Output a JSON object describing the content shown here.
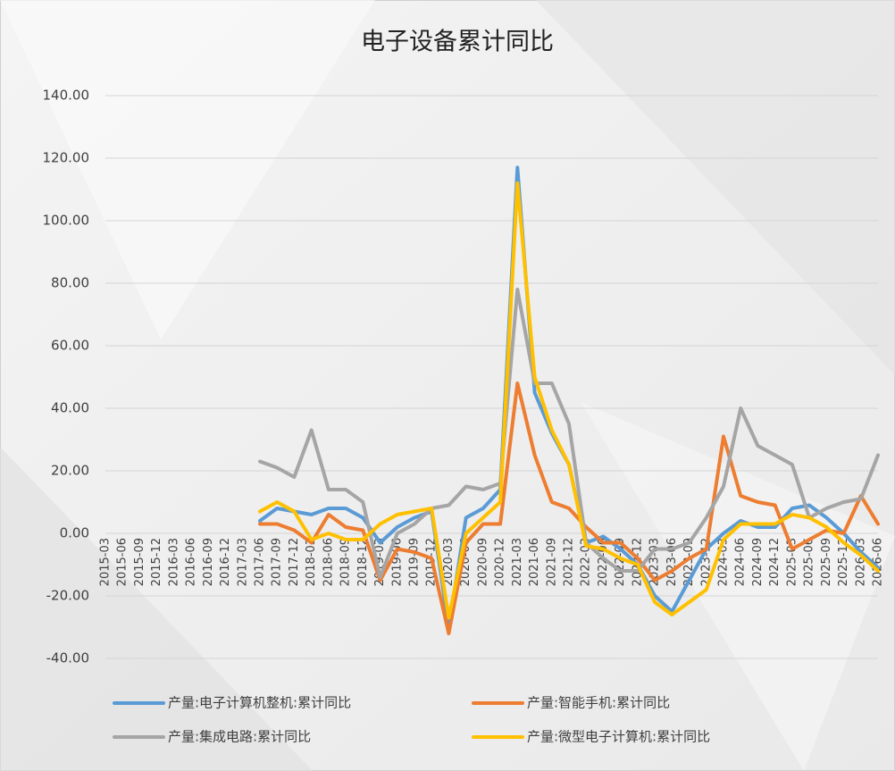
{
  "chart_data": {
    "type": "line",
    "title": "电子设备累计同比",
    "categories": [
      "2015-03",
      "2015-06",
      "2015-09",
      "2015-12",
      "2016-03",
      "2016-06",
      "2016-09",
      "2016-12",
      "2017-03",
      "2017-06",
      "2017-09",
      "2017-12",
      "2018-03",
      "2018-06",
      "2018-09",
      "2018-12",
      "2019-03",
      "2019-06",
      "2019-09",
      "2019-12",
      "2020-03",
      "2020-06",
      "2020-09",
      "2020-12",
      "2021-03",
      "2021-06",
      "2021-09",
      "2021-12",
      "2022-03",
      "2022-06",
      "2022-09",
      "2022-12",
      "2023-03",
      "2023-06",
      "2023-09",
      "2023-12",
      "2024-03",
      "2024-06",
      "2024-09",
      "2024-12",
      "2025-03",
      "2025-06",
      "2025-09",
      "2025-12",
      "2026-03",
      "2026-06"
    ],
    "series": [
      {
        "name": "产量:电子计算机整机:累计同比",
        "color": "#5b9bd5",
        "values": [
          null,
          null,
          null,
          null,
          null,
          null,
          null,
          null,
          null,
          4,
          8,
          7,
          6,
          8,
          8,
          5,
          -3,
          2,
          5,
          7,
          -30,
          5,
          8,
          14,
          117,
          45,
          32,
          22,
          -3,
          -1,
          -5,
          -10,
          -20,
          -25,
          -15,
          -5,
          0,
          4,
          2,
          2,
          8,
          9,
          5,
          0,
          -6,
          -11
        ]
      },
      {
        "name": "产量:智能手机:累计同比",
        "color": "#ed7d31",
        "values": [
          null,
          null,
          null,
          null,
          null,
          null,
          null,
          null,
          null,
          3,
          3,
          1,
          -3,
          6,
          2,
          1,
          -15,
          -5,
          -6,
          -8,
          -32,
          -3,
          3,
          3,
          48,
          25,
          10,
          8,
          2,
          -3,
          -3,
          -8,
          -15,
          -12,
          -8,
          -5,
          31,
          12,
          10,
          9,
          -5,
          -2,
          1,
          0,
          12,
          3
        ]
      },
      {
        "name": "产量:集成电路:累计同比",
        "color": "#a5a5a5",
        "values": [
          null,
          null,
          null,
          null,
          null,
          null,
          null,
          null,
          null,
          23,
          21,
          18,
          33,
          14,
          14,
          10,
          -14,
          0,
          3,
          8,
          9,
          15,
          14,
          16,
          78,
          48,
          48,
          35,
          -3,
          -8,
          -12,
          -12,
          -5,
          -5,
          -3,
          5,
          15,
          40,
          28,
          25,
          22,
          5,
          8,
          10,
          11,
          25
        ]
      },
      {
        "name": "产量:微型电子计算机:累计同比",
        "color": "#ffc000",
        "values": [
          null,
          null,
          null,
          null,
          null,
          null,
          null,
          null,
          null,
          7,
          10,
          7,
          -2,
          0,
          -2,
          -2,
          3,
          6,
          7,
          8,
          -27,
          0,
          5,
          10,
          112,
          50,
          33,
          22,
          -4,
          -5,
          -8,
          -10,
          -22,
          -26,
          -22,
          -18,
          -2,
          3,
          3,
          3,
          6,
          5,
          2,
          -3,
          -7,
          -12
        ]
      }
    ],
    "ylim": [
      -40,
      140
    ],
    "yticks": [
      {
        "value": -40,
        "label": "-40.00"
      },
      {
        "value": -20,
        "label": "-20.00"
      },
      {
        "value": 0,
        "label": "0.00"
      },
      {
        "value": 20,
        "label": "20.00"
      },
      {
        "value": 40,
        "label": "40.00"
      },
      {
        "value": 60,
        "label": "60.00"
      },
      {
        "value": 80,
        "label": "80.00"
      },
      {
        "value": 100,
        "label": "100.00"
      },
      {
        "value": 120,
        "label": "120.00"
      },
      {
        "value": 140,
        "label": "140.00"
      }
    ],
    "grid": true,
    "legend": "bottom"
  }
}
